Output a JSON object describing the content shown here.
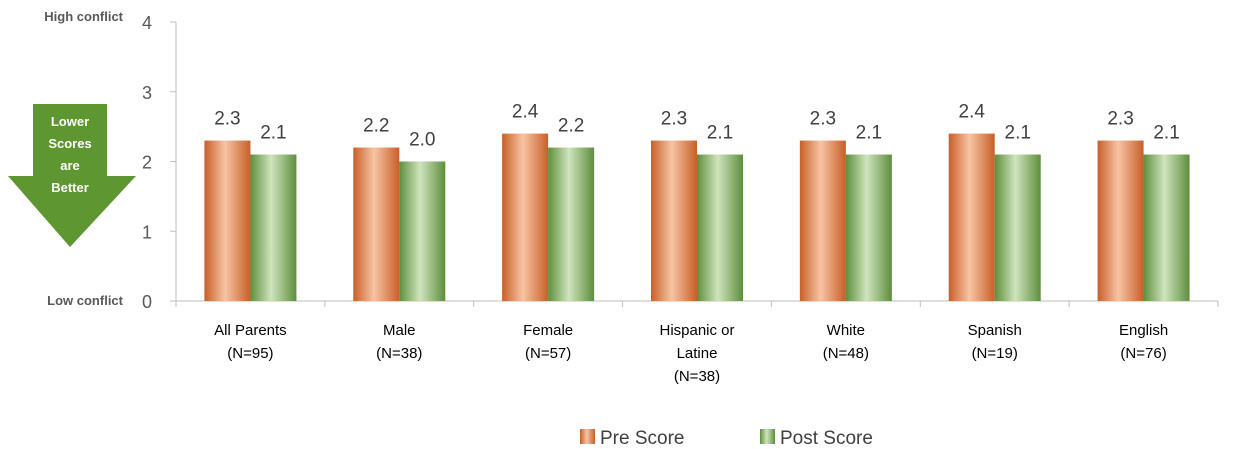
{
  "chart_data": {
    "type": "bar",
    "categories": [
      [
        "All Parents",
        "(N=95)"
      ],
      [
        "Male",
        "(N=38)"
      ],
      [
        "Female",
        "(N=57)"
      ],
      [
        "Hispanic or",
        "Latine",
        "(N=38)"
      ],
      [
        "White",
        "(N=48)"
      ],
      [
        "Spanish",
        "(N=19)"
      ],
      [
        "English",
        "(N=76)"
      ]
    ],
    "series": [
      {
        "name": "Pre Score",
        "values": [
          2.3,
          2.2,
          2.4,
          2.3,
          2.3,
          2.4,
          2.3
        ],
        "labels": [
          "2.3",
          "2.2",
          "2.4",
          "2.3",
          "2.3",
          "2.4",
          "2.3"
        ],
        "color": "#D8703A"
      },
      {
        "name": "Post Score",
        "values": [
          2.1,
          2.0,
          2.2,
          2.1,
          2.1,
          2.1,
          2.1
        ],
        "labels": [
          "2.1",
          "2.0",
          "2.2",
          "2.1",
          "2.1",
          "2.1",
          "2.1"
        ],
        "color": "#70A04E"
      }
    ],
    "ylim": [
      0,
      4
    ],
    "yticks": [
      0,
      1,
      2,
      3,
      4
    ],
    "y_anchor_top": "High conflict",
    "y_anchor_bottom": "Low conflict",
    "annotation": [
      "Lower",
      "Scores",
      "are",
      "Better"
    ],
    "annotation_color": "#5E9632",
    "grid": false,
    "legend_position": "bottom"
  }
}
